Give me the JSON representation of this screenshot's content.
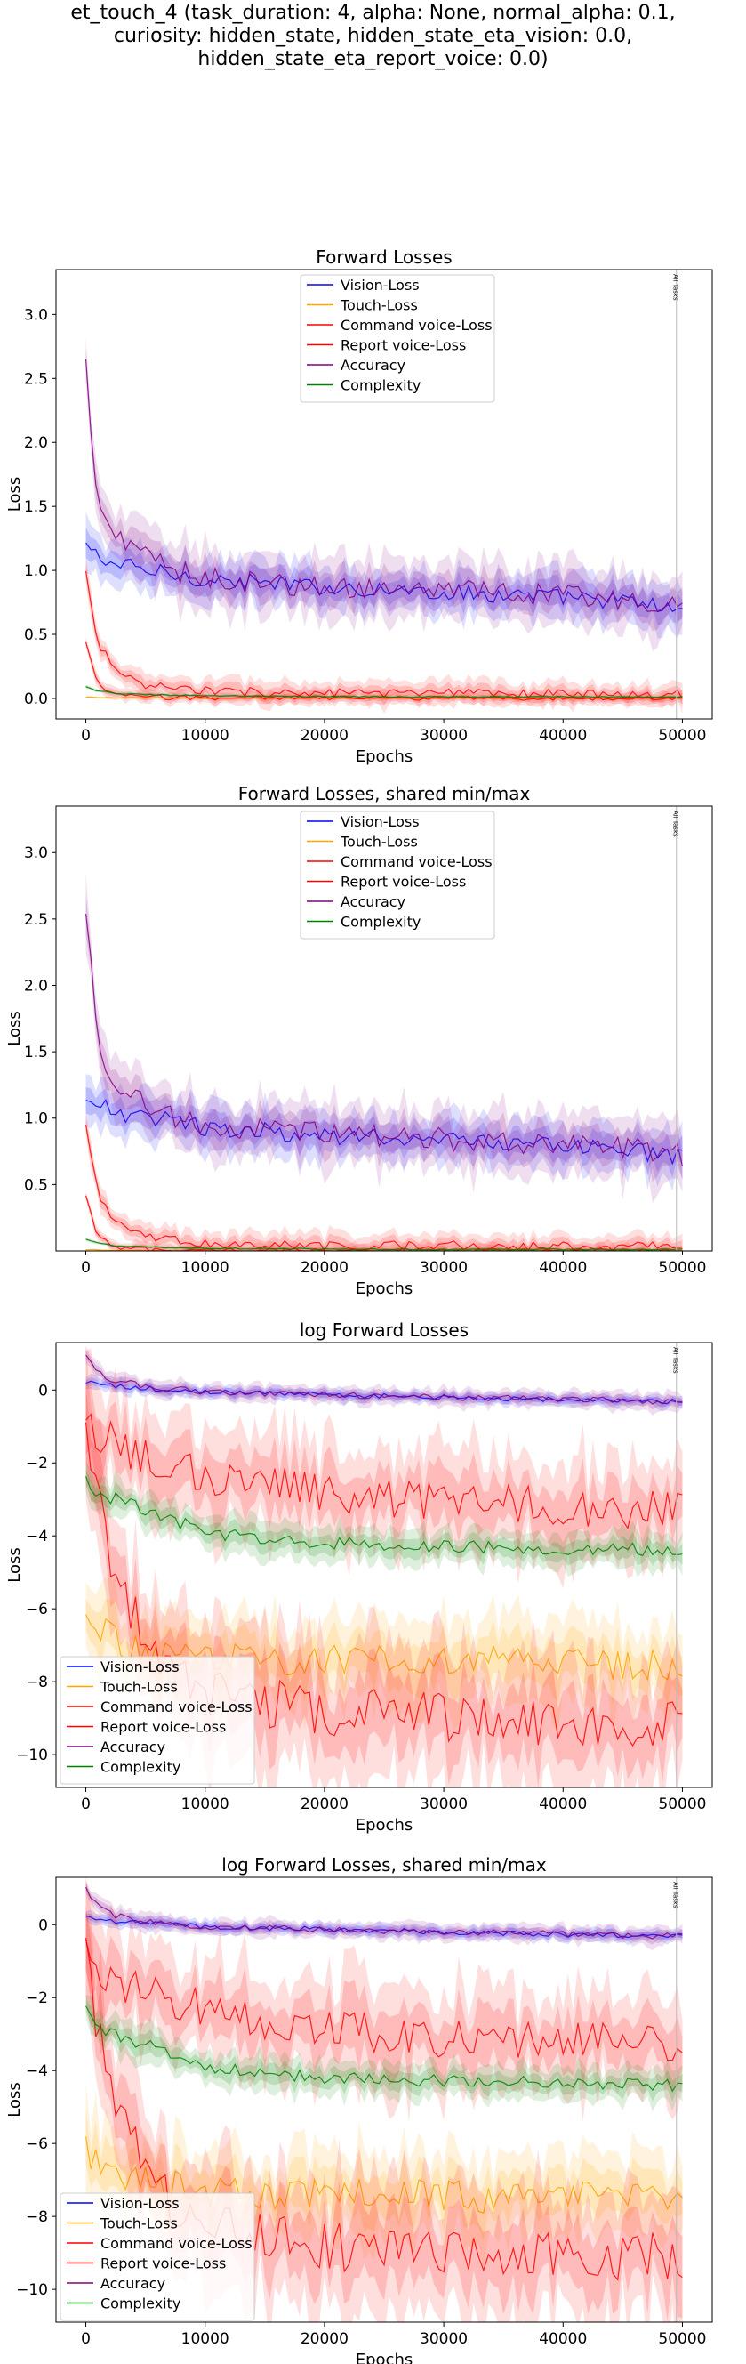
{
  "figure": {
    "title_lines": [
      "et_touch_4 (task_duration: 4, alpha: None, normal_alpha: 0.1,",
      "curiosity: hidden_state, hidden_state_eta_vision: 0.0,",
      "hidden_state_eta_report_voice: 0.0)"
    ]
  },
  "colors": {
    "vision": "#0000ff",
    "touch": "#ffa500",
    "command": "#ff0000",
    "report": "#ff0000",
    "accuracy": "#800080",
    "complexity": "#008000",
    "marker_line": "#bbbbbb"
  },
  "chart_data": [
    {
      "type": "line",
      "title": "Forward Losses",
      "xlabel": "Epochs",
      "ylabel": "Loss",
      "xlim": [
        -2500,
        52500
      ],
      "ylim": [
        -0.16,
        3.35
      ],
      "xticks": [
        0,
        10000,
        20000,
        30000,
        40000,
        50000
      ],
      "yticks": [
        0.0,
        0.5,
        1.0,
        1.5,
        2.0,
        2.5,
        3.0
      ],
      "ytick_labels": [
        "0.0",
        "0.5",
        "1.0",
        "1.5",
        "2.0",
        "2.5",
        "3.0"
      ],
      "grid": false,
      "legend_position": "upper center",
      "vline": {
        "x": 49500,
        "label": "All Tasks"
      },
      "series": [
        {
          "name": "Vision-Loss",
          "key": "vision",
          "x": [
            0,
            1000,
            2500,
            5000,
            7500,
            10000,
            15000,
            20000,
            25000,
            30000,
            35000,
            40000,
            45000,
            48000,
            50000
          ],
          "y": [
            1.2,
            1.1,
            1.05,
            1.0,
            0.97,
            0.93,
            0.9,
            0.87,
            0.85,
            0.83,
            0.81,
            0.79,
            0.76,
            0.72,
            0.7
          ],
          "spread": 0.15
        },
        {
          "name": "Touch-Loss",
          "key": "touch",
          "x": [
            0,
            2000,
            10000,
            30000,
            50000
          ],
          "y": [
            0.01,
            0.005,
            0.002,
            0.001,
            0.001
          ],
          "spread": 0.005
        },
        {
          "name": "Command voice-Loss",
          "key": "command",
          "x": [
            0,
            1000,
            2500,
            5000,
            10000,
            20000,
            30000,
            40000,
            50000
          ],
          "y": [
            0.98,
            0.45,
            0.2,
            0.1,
            0.06,
            0.04,
            0.04,
            0.035,
            0.03
          ],
          "spread": 0.08
        },
        {
          "name": "Report voice-Loss",
          "key": "report",
          "x": [
            0,
            1000,
            2500,
            5000,
            10000,
            20000,
            30000,
            50000
          ],
          "y": [
            0.43,
            0.1,
            0.03,
            0.01,
            0.005,
            0.003,
            0.002,
            0.002
          ],
          "spread": 0.04
        },
        {
          "name": "Accuracy",
          "key": "accuracy",
          "x": [
            0,
            1000,
            2500,
            5000,
            7500,
            10000,
            15000,
            20000,
            25000,
            30000,
            35000,
            40000,
            45000,
            48000,
            50000
          ],
          "y": [
            2.6,
            1.5,
            1.25,
            1.1,
            1.0,
            0.95,
            0.9,
            0.88,
            0.86,
            0.84,
            0.82,
            0.8,
            0.78,
            0.74,
            0.72
          ],
          "spread": 0.2
        },
        {
          "name": "Complexity",
          "key": "complexity",
          "x": [
            0,
            1000,
            2500,
            5000,
            10000,
            20000,
            30000,
            40000,
            50000
          ],
          "y": [
            0.09,
            0.06,
            0.04,
            0.03,
            0.02,
            0.015,
            0.012,
            0.012,
            0.012
          ],
          "spread": 0.01
        }
      ]
    },
    {
      "type": "line",
      "title": "Forward Losses, shared min/max",
      "xlabel": "Epochs",
      "ylabel": "Loss",
      "xlim": [
        -2500,
        52500
      ],
      "ylim": [
        0.0,
        3.35
      ],
      "xticks": [
        0,
        10000,
        20000,
        30000,
        40000,
        50000
      ],
      "yticks": [
        0.5,
        1.0,
        1.5,
        2.0,
        2.5,
        3.0
      ],
      "ytick_labels": [
        "0.5",
        "1.0",
        "1.5",
        "2.0",
        "2.5",
        "3.0"
      ],
      "grid": false,
      "legend_position": "upper center",
      "vline": {
        "x": 49500,
        "label": "All Tasks"
      },
      "series": [
        {
          "name": "Vision-Loss",
          "key": "vision",
          "x": [
            0,
            1000,
            2500,
            5000,
            7500,
            10000,
            15000,
            20000,
            25000,
            30000,
            35000,
            40000,
            45000,
            48000,
            50000
          ],
          "y": [
            1.2,
            1.1,
            1.05,
            1.0,
            0.97,
            0.93,
            0.9,
            0.87,
            0.85,
            0.83,
            0.81,
            0.79,
            0.76,
            0.72,
            0.7
          ],
          "spread": 0.15
        },
        {
          "name": "Touch-Loss",
          "key": "touch",
          "x": [
            0,
            2000,
            10000,
            30000,
            50000
          ],
          "y": [
            0.01,
            0.005,
            0.002,
            0.001,
            0.001
          ],
          "spread": 0.005
        },
        {
          "name": "Command voice-Loss",
          "key": "command",
          "x": [
            0,
            1000,
            2500,
            5000,
            10000,
            20000,
            30000,
            40000,
            50000
          ],
          "y": [
            0.98,
            0.45,
            0.2,
            0.1,
            0.06,
            0.04,
            0.04,
            0.035,
            0.03
          ],
          "spread": 0.08
        },
        {
          "name": "Report voice-Loss",
          "key": "report",
          "x": [
            0,
            1000,
            2500,
            5000,
            10000,
            20000,
            30000,
            50000
          ],
          "y": [
            0.43,
            0.1,
            0.03,
            0.01,
            0.005,
            0.003,
            0.002,
            0.002
          ],
          "spread": 0.04
        },
        {
          "name": "Accuracy",
          "key": "accuracy",
          "x": [
            0,
            1000,
            2500,
            5000,
            7500,
            10000,
            15000,
            20000,
            25000,
            30000,
            35000,
            40000,
            45000,
            48000,
            50000
          ],
          "y": [
            2.6,
            1.5,
            1.25,
            1.1,
            1.0,
            0.95,
            0.9,
            0.88,
            0.86,
            0.84,
            0.82,
            0.8,
            0.78,
            0.74,
            0.72
          ],
          "spread": 0.2
        },
        {
          "name": "Complexity",
          "key": "complexity",
          "x": [
            0,
            1000,
            2500,
            5000,
            10000,
            20000,
            30000,
            40000,
            50000
          ],
          "y": [
            0.09,
            0.06,
            0.04,
            0.03,
            0.02,
            0.015,
            0.012,
            0.012,
            0.012
          ],
          "spread": 0.01
        }
      ]
    },
    {
      "type": "line",
      "title": "log Forward Losses",
      "xlabel": "Epochs",
      "ylabel": "Loss",
      "xlim": [
        -2500,
        52500
      ],
      "ylim": [
        -10.9,
        1.3
      ],
      "xticks": [
        0,
        10000,
        20000,
        30000,
        40000,
        50000
      ],
      "yticks": [
        -10,
        -8,
        -6,
        -4,
        -2,
        0
      ],
      "ytick_labels": [
        "−10",
        "−8",
        "−6",
        "−4",
        "−2",
        "0"
      ],
      "grid": false,
      "legend_position": "lower left",
      "vline": {
        "x": 49500,
        "label": "All Tasks"
      },
      "series": [
        {
          "name": "Vision-Loss",
          "key": "vision",
          "x": [
            0,
            2500,
            5000,
            10000,
            20000,
            30000,
            40000,
            50000
          ],
          "y": [
            0.2,
            0.1,
            0.05,
            -0.05,
            -0.12,
            -0.2,
            -0.27,
            -0.32
          ],
          "spread": 0.15
        },
        {
          "name": "Touch-Loss",
          "key": "touch",
          "x": [
            0,
            1000,
            2500,
            5000,
            7500,
            10000,
            15000,
            20000,
            30000,
            40000,
            50000
          ],
          "y": [
            -6.1,
            -6.6,
            -6.9,
            -7.1,
            -7.2,
            -7.3,
            -7.4,
            -7.4,
            -7.45,
            -7.5,
            -7.5
          ],
          "spread": 1.0
        },
        {
          "name": "Command voice-Loss",
          "key": "command",
          "x": [
            0,
            1000,
            2500,
            5000,
            10000,
            15000,
            20000,
            25000,
            30000,
            40000,
            50000
          ],
          "y": [
            -0.8,
            -1.2,
            -1.5,
            -1.9,
            -2.3,
            -2.6,
            -2.8,
            -3.0,
            -3.1,
            -3.2,
            -3.3
          ],
          "spread": 1.2
        },
        {
          "name": "Report voice-Loss",
          "key": "report",
          "x": [
            0,
            1000,
            2500,
            5000,
            7500,
            10000,
            15000,
            20000,
            25000,
            30000,
            40000,
            50000
          ],
          "y": [
            -0.9,
            -3.0,
            -5.0,
            -6.8,
            -7.8,
            -8.3,
            -8.6,
            -8.8,
            -8.9,
            -9.0,
            -9.1,
            -9.1
          ],
          "spread": 1.5
        },
        {
          "name": "Accuracy",
          "key": "accuracy",
          "x": [
            0,
            1000,
            2500,
            5000,
            10000,
            20000,
            30000,
            40000,
            50000
          ],
          "y": [
            0.95,
            0.5,
            0.25,
            0.1,
            -0.05,
            -0.12,
            -0.2,
            -0.26,
            -0.32
          ],
          "spread": 0.2
        },
        {
          "name": "Complexity",
          "key": "complexity",
          "x": [
            0,
            1000,
            2500,
            5000,
            7500,
            10000,
            15000,
            20000,
            30000,
            40000,
            50000
          ],
          "y": [
            -2.4,
            -2.8,
            -3.0,
            -3.3,
            -3.6,
            -3.9,
            -4.1,
            -4.2,
            -4.3,
            -4.35,
            -4.4
          ],
          "spread": 0.4
        }
      ]
    },
    {
      "type": "line",
      "title": "log Forward Losses, shared min/max",
      "xlabel": "Epochs",
      "ylabel": "Loss",
      "xlim": [
        -2500,
        52500
      ],
      "ylim": [
        -10.9,
        1.3
      ],
      "xticks": [
        0,
        10000,
        20000,
        30000,
        40000,
        50000
      ],
      "yticks": [
        -10,
        -8,
        -6,
        -4,
        -2,
        0
      ],
      "ytick_labels": [
        "−10",
        "−8",
        "−6",
        "−4",
        "−2",
        "0"
      ],
      "grid": false,
      "legend_position": "lower left",
      "vline": {
        "x": 49500,
        "label": "All Tasks"
      },
      "series": [
        {
          "name": "Vision-Loss",
          "key": "vision",
          "x": [
            0,
            2500,
            5000,
            10000,
            20000,
            30000,
            40000,
            50000
          ],
          "y": [
            0.2,
            0.1,
            0.05,
            -0.05,
            -0.12,
            -0.2,
            -0.27,
            -0.32
          ],
          "spread": 0.15
        },
        {
          "name": "Touch-Loss",
          "key": "touch",
          "x": [
            0,
            1000,
            2500,
            5000,
            7500,
            10000,
            15000,
            20000,
            30000,
            40000,
            50000
          ],
          "y": [
            -6.1,
            -6.6,
            -6.9,
            -7.1,
            -7.2,
            -7.3,
            -7.4,
            -7.4,
            -7.45,
            -7.5,
            -7.5
          ],
          "spread": 1.0
        },
        {
          "name": "Command voice-Loss",
          "key": "command",
          "x": [
            0,
            1000,
            2500,
            5000,
            10000,
            15000,
            20000,
            25000,
            30000,
            40000,
            50000
          ],
          "y": [
            -0.8,
            -1.2,
            -1.5,
            -1.9,
            -2.3,
            -2.6,
            -2.8,
            -3.0,
            -3.1,
            -3.2,
            -3.3
          ],
          "spread": 1.2
        },
        {
          "name": "Report voice-Loss",
          "key": "report",
          "x": [
            0,
            1000,
            2500,
            5000,
            7500,
            10000,
            15000,
            20000,
            25000,
            30000,
            40000,
            50000
          ],
          "y": [
            -0.9,
            -3.0,
            -5.0,
            -6.8,
            -7.8,
            -8.3,
            -8.6,
            -8.8,
            -8.9,
            -9.0,
            -9.1,
            -9.1
          ],
          "spread": 1.5
        },
        {
          "name": "Accuracy",
          "key": "accuracy",
          "x": [
            0,
            1000,
            2500,
            5000,
            10000,
            20000,
            30000,
            40000,
            50000
          ],
          "y": [
            0.95,
            0.5,
            0.25,
            0.1,
            -0.05,
            -0.12,
            -0.2,
            -0.26,
            -0.32
          ],
          "spread": 0.2
        },
        {
          "name": "Complexity",
          "key": "complexity",
          "x": [
            0,
            1000,
            2500,
            5000,
            7500,
            10000,
            15000,
            20000,
            30000,
            40000,
            50000
          ],
          "y": [
            -2.4,
            -2.8,
            -3.0,
            -3.3,
            -3.6,
            -3.9,
            -4.1,
            -4.2,
            -4.3,
            -4.35,
            -4.4
          ],
          "spread": 0.4
        }
      ]
    }
  ]
}
